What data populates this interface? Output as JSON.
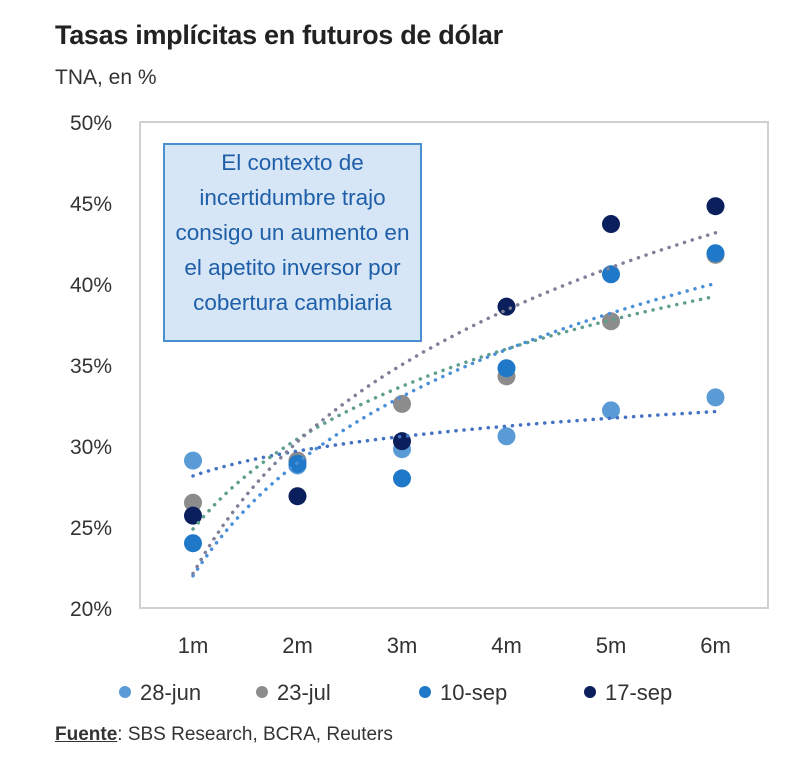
{
  "chart_data": {
    "type": "scatter",
    "title": "Tasas implícitas en futuros de dólar",
    "subtitle": "TNA, en %",
    "xlabel": "",
    "ylabel": "TNA, en %",
    "categories": [
      "1m",
      "2m",
      "3m",
      "4m",
      "5m",
      "6m"
    ],
    "ylim": [
      20,
      50
    ],
    "yticks": [
      "20%",
      "25%",
      "30%",
      "35%",
      "40%",
      "45%",
      "50%"
    ],
    "ytick_values": [
      20,
      25,
      30,
      35,
      40,
      45,
      50
    ],
    "grid": false,
    "legend_position": "bottom",
    "trendlines": "logarithmic, dotted",
    "series": [
      {
        "name": "28-jun",
        "color": "#5b9bd5",
        "trend_color": "#4472c4",
        "values": [
          29.1,
          28.8,
          29.8,
          30.6,
          32.2,
          33.0
        ]
      },
      {
        "name": "23-jul",
        "color": "#8c8c8c",
        "trend_color": "#5e9e8c",
        "values": [
          26.5,
          29.1,
          32.6,
          34.3,
          37.7,
          41.8
        ]
      },
      {
        "name": "10-sep",
        "color": "#1f78c8",
        "trend_color": "#4a8fd9",
        "values": [
          24.0,
          28.9,
          28.0,
          34.8,
          40.6,
          41.9
        ]
      },
      {
        "name": "17-sep",
        "color": "#0b1f5c",
        "trend_color": "#7f7f99",
        "values": [
          25.7,
          26.9,
          30.3,
          38.6,
          43.7,
          44.8
        ]
      }
    ],
    "annotation": "El contexto de incertidumbre trajo consigo un aumento en el apetito inversor por cobertura cambiaria"
  },
  "source": {
    "label": "Fuente",
    "text": ": SBS Research, BCRA, Reuters"
  }
}
